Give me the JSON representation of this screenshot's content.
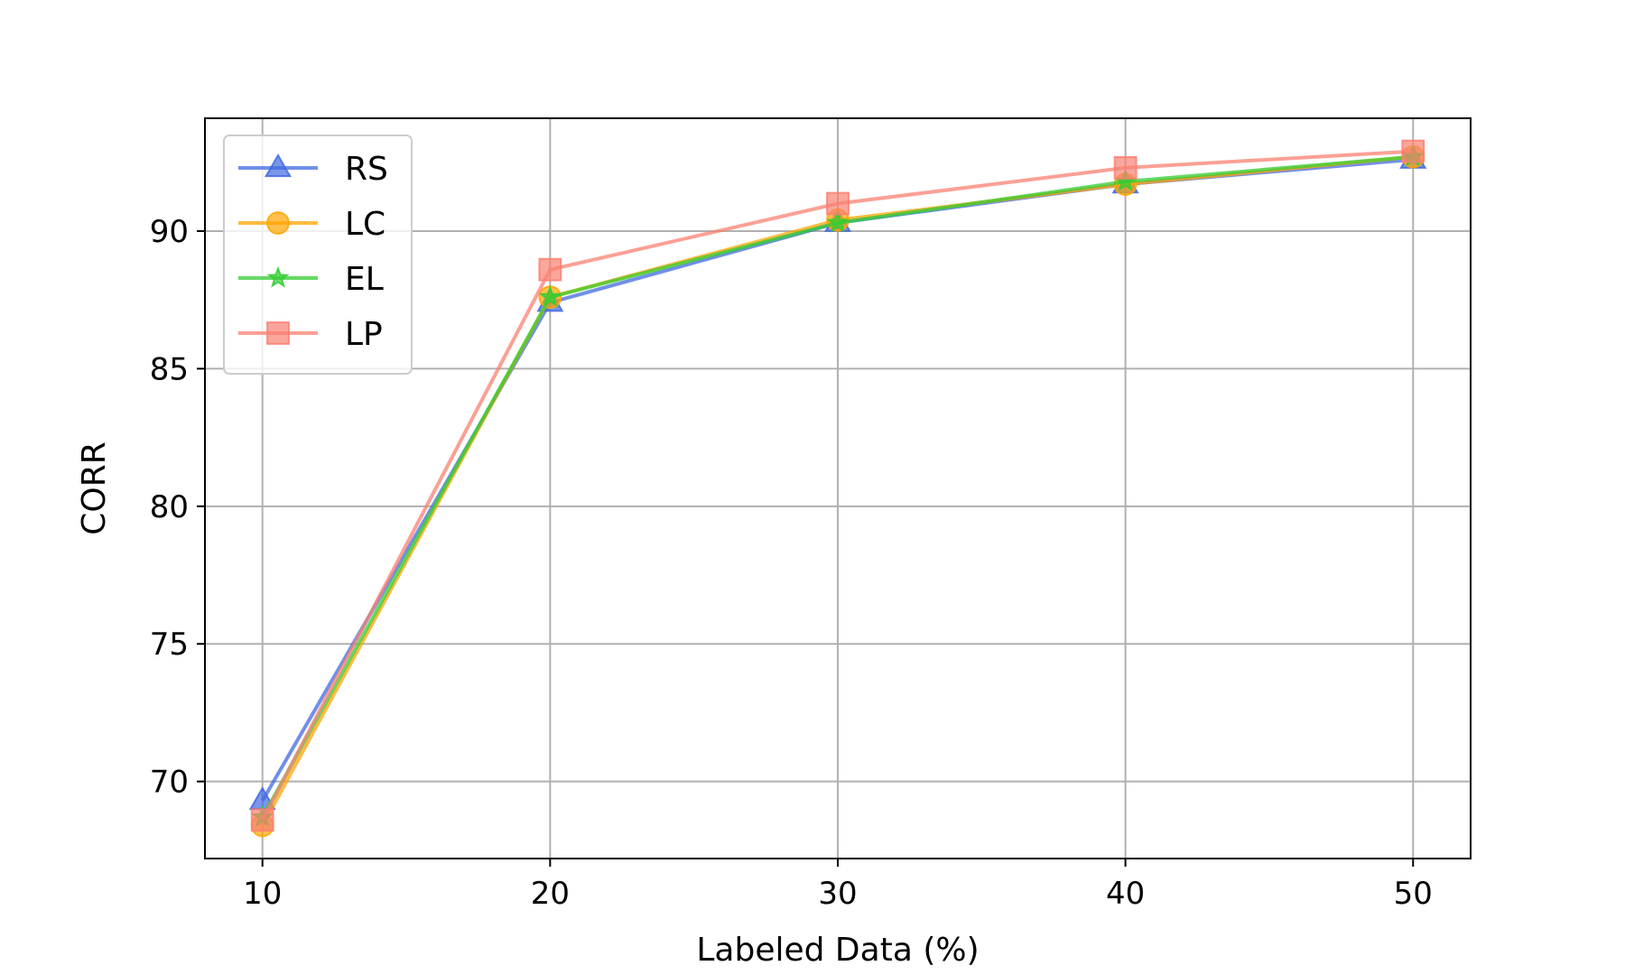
{
  "chart_data": {
    "type": "line",
    "title": "",
    "xlabel": "Labeled Data (%)",
    "ylabel": "CORR",
    "x": [
      10,
      20,
      30,
      40,
      50
    ],
    "xlim": [
      8,
      52
    ],
    "ylim": [
      67.2,
      94.1
    ],
    "xticks": [
      "10",
      "20",
      "30",
      "40",
      "50"
    ],
    "yticks": [
      "70",
      "75",
      "80",
      "85",
      "90"
    ],
    "grid": true,
    "legend_position": "upper-left",
    "series": [
      {
        "name": "RS",
        "color": "#4169E1",
        "marker": "triangle",
        "values": [
          69.3,
          87.4,
          90.3,
          91.7,
          92.6
        ]
      },
      {
        "name": "LC",
        "color": "#FFA500",
        "marker": "circle",
        "values": [
          68.4,
          87.6,
          90.4,
          91.7,
          92.7
        ]
      },
      {
        "name": "EL",
        "color": "#32CD32",
        "marker": "star",
        "values": [
          68.7,
          87.6,
          90.3,
          91.8,
          92.7
        ]
      },
      {
        "name": "LP",
        "color": "#FA8072",
        "marker": "square",
        "values": [
          68.6,
          88.6,
          91.0,
          92.3,
          92.9
        ]
      }
    ]
  }
}
